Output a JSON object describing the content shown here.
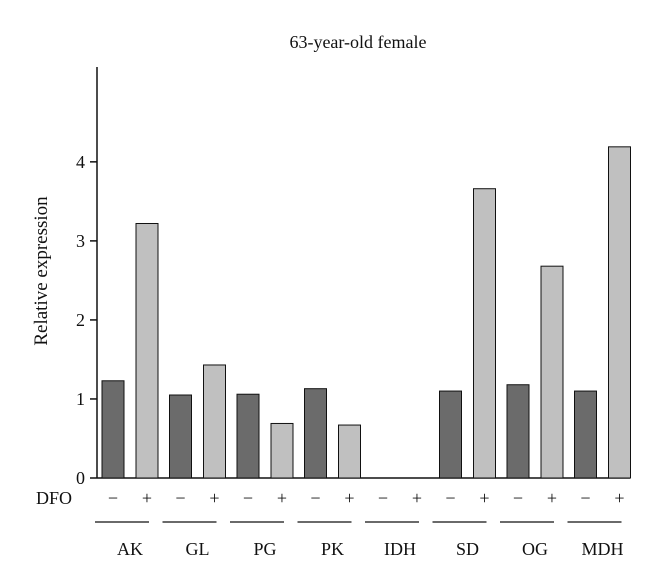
{
  "chart_data": {
    "type": "bar",
    "title": "63-year-old female",
    "ylabel": "Relative expression",
    "xlabel": "",
    "ylim": [
      0,
      5.2
    ],
    "yticks": [
      0,
      1,
      2,
      3,
      4
    ],
    "categories": [
      "AK",
      "GL",
      "PG",
      "PK",
      "IDH",
      "SD",
      "OG",
      "MDH"
    ],
    "condition_label": "DFO",
    "condition_signs": [
      "−",
      "+"
    ],
    "series": [
      {
        "values": [
          1.23,
          1.05,
          1.06,
          1.13,
          0,
          1.1,
          1.18,
          1.1
        ],
        "color": "#6b6b6b"
      },
      {
        "values": [
          3.22,
          1.43,
          0.69,
          0.67,
          0,
          3.66,
          2.68,
          4.19
        ],
        "color": "#c0c0c0"
      }
    ],
    "grid": false,
    "legend": "none"
  }
}
